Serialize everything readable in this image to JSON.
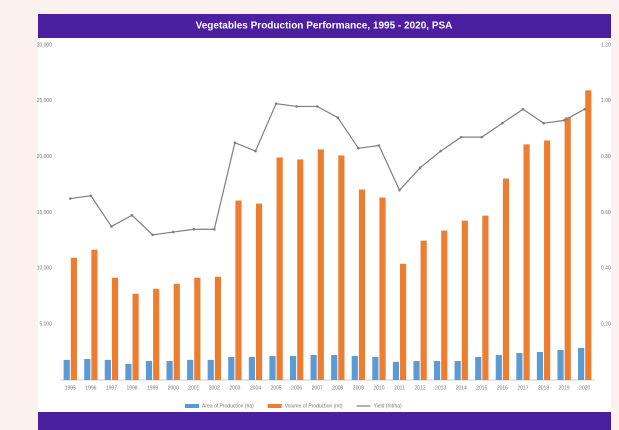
{
  "chart_data": {
    "type": "combo",
    "title": "Vegetables Production Performance, 1995 - 2020, PSA",
    "categories": [
      "1995",
      "1996",
      "1997",
      "1998",
      "1999",
      "2000",
      "2001",
      "2002",
      "2003",
      "2004",
      "2005",
      "2006",
      "2007",
      "2008",
      "2009",
      "2010",
      "2011",
      "2012",
      "2013",
      "2014",
      "2015",
      "2016",
      "2017",
      "2018",
      "2019",
      "2020"
    ],
    "series": [
      {
        "name": "Area of Production (ha)",
        "color": "#5b9bd5",
        "kind": "bar",
        "values": [
          1800,
          1880,
          1800,
          1440,
          1700,
          1700,
          1800,
          1800,
          2060,
          2060,
          2150,
          2150,
          2240,
          2240,
          2150,
          2060,
          1620,
          1700,
          1700,
          1700,
          2060,
          2240,
          2420,
          2510,
          2690,
          2870
        ]
      },
      {
        "name": "Volume of Production (mt)",
        "color": "#ed7d31",
        "kind": "bar",
        "values": [
          10950,
          11670,
          9160,
          7720,
          8170,
          8620,
          9160,
          9250,
          16070,
          15800,
          19930,
          19750,
          20650,
          20110,
          17060,
          16340,
          10410,
          12480,
          13380,
          14270,
          14720,
          18040,
          21100,
          21450,
          23520,
          25940
        ]
      },
      {
        "name": "Yield (mt/ha)",
        "color": "#7f7f7f",
        "kind": "line",
        "axis": "y2",
        "values": [
          0.65,
          0.66,
          0.55,
          0.59,
          0.52,
          0.53,
          0.54,
          0.54,
          0.85,
          0.82,
          0.99,
          0.98,
          0.98,
          0.94,
          0.83,
          0.84,
          0.68,
          0.76,
          0.82,
          0.87,
          0.87,
          0.92,
          0.97,
          0.92,
          0.93,
          0.97
        ]
      }
    ],
    "ylim": [
      0,
      30000
    ],
    "yticks": [
      {
        "value": 5000,
        "label": "5,000"
      },
      {
        "value": 10000,
        "label": "10,000"
      },
      {
        "value": 15000,
        "label": "15,000"
      },
      {
        "value": 20000,
        "label": "20,000"
      },
      {
        "value": 25000,
        "label": "25,000"
      },
      {
        "value": 30000,
        "label": "30,000"
      }
    ],
    "y2lim": [
      0,
      1.2
    ],
    "y2ticks": [
      {
        "value": 0.2,
        "label": "0.20"
      },
      {
        "value": 0.4,
        "label": "0.40"
      },
      {
        "value": 0.6,
        "label": "0.60"
      },
      {
        "value": 0.8,
        "label": "0.80"
      },
      {
        "value": 1.0,
        "label": "1.00"
      },
      {
        "value": 1.2,
        "label": "1.20"
      }
    ],
    "grid": false,
    "legend": "bottom"
  }
}
